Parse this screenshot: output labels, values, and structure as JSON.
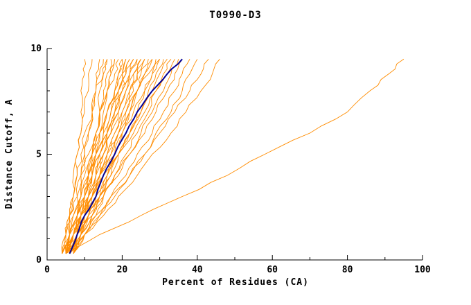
{
  "page": {
    "background": "#ffffff"
  },
  "chart_data": {
    "type": "line",
    "title": "T0990-D3",
    "xlabel": "Percent of Residues (CA)",
    "ylabel": "Distance Cutoff, A",
    "xlim": [
      0,
      100
    ],
    "ylim": [
      0,
      10
    ],
    "x_major_ticks": [
      0,
      20,
      40,
      60,
      80,
      100
    ],
    "x_minor_step": 10,
    "y_major_ticks": [
      0,
      5,
      10
    ],
    "y_minor_step": 1,
    "grid": false,
    "legend": "none",
    "colors": {
      "model_lines": "#ff8c00",
      "highlight_line": "#000099",
      "axis": "#000000",
      "text": "#000000"
    },
    "y_anchors": [
      0.3,
      1.2,
      2.1,
      3.0,
      4.0,
      5.0,
      6.0,
      7.0,
      8.0,
      8.8,
      9.5
    ],
    "model_series_x": [
      [
        5,
        6,
        6,
        7,
        8,
        8,
        9,
        9,
        9,
        10,
        10
      ],
      [
        4,
        5,
        6,
        7,
        7,
        8,
        9,
        10,
        11,
        11,
        12
      ],
      [
        6,
        7,
        8,
        9,
        9,
        10,
        11,
        12,
        13,
        13,
        14
      ],
      [
        5,
        6,
        7,
        8,
        9,
        10,
        11,
        12,
        13,
        14,
        15
      ],
      [
        7,
        8,
        9,
        10,
        11,
        12,
        13,
        14,
        14,
        15,
        16
      ],
      [
        4,
        5,
        6,
        7,
        8,
        9,
        10,
        12,
        13,
        15,
        16
      ],
      [
        6,
        7,
        8,
        9,
        11,
        12,
        13,
        14,
        15,
        16,
        17
      ],
      [
        5,
        6,
        8,
        9,
        10,
        12,
        13,
        14,
        16,
        17,
        18
      ],
      [
        7,
        8,
        9,
        10,
        12,
        13,
        14,
        15,
        16,
        17,
        18
      ],
      [
        4,
        5,
        6,
        8,
        9,
        11,
        13,
        14,
        16,
        18,
        19
      ],
      [
        6,
        8,
        9,
        10,
        12,
        13,
        15,
        16,
        18,
        19,
        20
      ],
      [
        5,
        6,
        8,
        10,
        11,
        13,
        14,
        16,
        18,
        19,
        20
      ],
      [
        7,
        8,
        10,
        11,
        13,
        14,
        16,
        17,
        19,
        20,
        21
      ],
      [
        5,
        6,
        7,
        9,
        11,
        12,
        14,
        16,
        18,
        20,
        21
      ],
      [
        6,
        8,
        9,
        11,
        13,
        14,
        16,
        18,
        19,
        21,
        22
      ],
      [
        4,
        6,
        8,
        10,
        11,
        13,
        15,
        17,
        19,
        20,
        22
      ],
      [
        7,
        9,
        10,
        12,
        14,
        15,
        17,
        19,
        20,
        22,
        23
      ],
      [
        5,
        7,
        9,
        11,
        12,
        14,
        16,
        18,
        20,
        21,
        23
      ],
      [
        6,
        8,
        10,
        12,
        13,
        15,
        17,
        19,
        21,
        22,
        24
      ],
      [
        5,
        6,
        8,
        10,
        12,
        14,
        16,
        18,
        20,
        22,
        24
      ],
      [
        7,
        9,
        11,
        13,
        14,
        16,
        18,
        20,
        22,
        23,
        25
      ],
      [
        4,
        7,
        9,
        11,
        13,
        15,
        17,
        19,
        21,
        23,
        25
      ],
      [
        6,
        8,
        10,
        12,
        14,
        17,
        19,
        21,
        23,
        24,
        26
      ],
      [
        5,
        7,
        10,
        12,
        14,
        16,
        18,
        20,
        22,
        24,
        26
      ],
      [
        7,
        9,
        11,
        14,
        16,
        18,
        20,
        22,
        24,
        25,
        27
      ],
      [
        5,
        7,
        9,
        11,
        14,
        16,
        19,
        21,
        24,
        26,
        28
      ],
      [
        6,
        9,
        11,
        13,
        15,
        18,
        20,
        22,
        24,
        26,
        28
      ],
      [
        4,
        7,
        10,
        12,
        14,
        17,
        19,
        22,
        24,
        27,
        29
      ],
      [
        7,
        10,
        12,
        14,
        17,
        19,
        22,
        24,
        26,
        28,
        30
      ],
      [
        5,
        7,
        9,
        12,
        15,
        18,
        20,
        23,
        26,
        28,
        30
      ],
      [
        6,
        9,
        11,
        14,
        17,
        19,
        22,
        25,
        27,
        29,
        31
      ],
      [
        5,
        8,
        11,
        14,
        16,
        19,
        22,
        25,
        28,
        30,
        32
      ],
      [
        7,
        10,
        13,
        15,
        18,
        21,
        24,
        27,
        29,
        31,
        33
      ],
      [
        4,
        7,
        10,
        13,
        16,
        19,
        23,
        26,
        29,
        32,
        34
      ],
      [
        6,
        9,
        12,
        15,
        18,
        22,
        25,
        28,
        31,
        33,
        35
      ],
      [
        5,
        8,
        12,
        15,
        19,
        22,
        26,
        29,
        32,
        34,
        36
      ],
      [
        7,
        10,
        14,
        17,
        21,
        24,
        28,
        31,
        34,
        36,
        38
      ],
      [
        6,
        10,
        14,
        18,
        22,
        26,
        29,
        33,
        36,
        38,
        40
      ],
      [
        5,
        9,
        13,
        17,
        22,
        26,
        30,
        34,
        38,
        41,
        43
      ],
      [
        6,
        10,
        15,
        19,
        24,
        28,
        33,
        37,
        41,
        44,
        46
      ],
      [
        5,
        14,
        25,
        36,
        48,
        58,
        70,
        80,
        86,
        91,
        95
      ]
    ],
    "highlight_series_x": [
      6,
      8,
      10,
      13,
      15,
      18,
      21,
      24,
      28,
      32,
      36
    ]
  }
}
